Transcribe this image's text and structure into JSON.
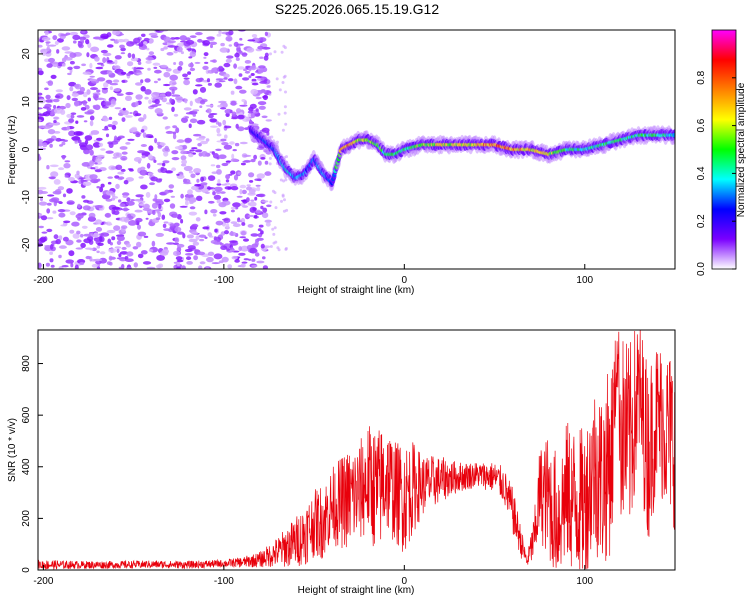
{
  "chart_data": [
    {
      "type": "heatmap",
      "title": "S225.2026.065.15.19.G12",
      "xlabel": "Height of straight line (km)",
      "ylabel": "Frequency (Hz)",
      "xlim": [
        -203,
        150
      ],
      "ylim": [
        -25,
        25
      ],
      "xticks": [
        -200,
        -100,
        0,
        100
      ],
      "yticks": [
        20,
        10,
        0,
        -10,
        -20
      ],
      "grid": false,
      "colorbar": {
        "label": "Normalized spectral amplitude",
        "range": [
          0,
          1
        ],
        "ticks": [
          "0.0",
          "0.2",
          "0.4",
          "0.6",
          "0.8"
        ],
        "colors": [
          "#ffffff",
          "#7a00ff",
          "#0000ff",
          "#00ffff",
          "#00ff00",
          "#ffff00",
          "#ff8000",
          "#ff0000",
          "#ff00ff"
        ]
      },
      "ridge": {
        "x": [
          -85,
          -78,
          -72,
          -66,
          -60,
          -55,
          -50,
          -45,
          -40,
          -35,
          -30,
          -25,
          -20,
          -15,
          -10,
          -5,
          0,
          10,
          20,
          30,
          40,
          50,
          60,
          70,
          80,
          90,
          100,
          110,
          120,
          130,
          140,
          150
        ],
        "freq": [
          4,
          2,
          0,
          -4,
          -6,
          -5,
          -2,
          -5,
          -7,
          0,
          1,
          2,
          2,
          1,
          -1,
          -1,
          0,
          1,
          1,
          1,
          1,
          1,
          0,
          0,
          -1,
          0,
          0,
          1,
          2,
          3,
          3,
          3
        ],
        "amplitude": [
          0.2,
          0.25,
          0.3,
          0.4,
          0.35,
          0.3,
          0.3,
          0.35,
          0.25,
          0.7,
          0.75,
          0.6,
          0.55,
          0.5,
          0.45,
          0.5,
          0.45,
          0.55,
          0.6,
          0.6,
          0.65,
          0.8,
          0.75,
          0.65,
          0.6,
          0.45,
          0.4,
          0.45,
          0.45,
          0.45,
          0.45,
          0.4
        ]
      }
    },
    {
      "type": "line",
      "title": "",
      "xlabel": "Height of straight line (km)",
      "ylabel": "SNR (10 * v/v)",
      "xlim": [
        -203,
        150
      ],
      "ylim": [
        0,
        930
      ],
      "xticks": [
        -200,
        -100,
        0,
        100
      ],
      "yticks": [
        0,
        200,
        400,
        600,
        800
      ],
      "grid": false,
      "color": "#e8000b",
      "series": [
        {
          "x": [
            -203,
            -180,
            -160,
            -140,
            -120,
            -100,
            -90,
            -80,
            -70,
            -65,
            -60,
            -55,
            -50,
            -45,
            -40,
            -35,
            -30,
            -25,
            -20,
            -15,
            -10,
            -5,
            0,
            5,
            10,
            20,
            30,
            40,
            50,
            55,
            60,
            65,
            68,
            70,
            72,
            75,
            80,
            85,
            90,
            95,
            100,
            105,
            110,
            115,
            118,
            120,
            125,
            130,
            135,
            140,
            145,
            150
          ],
          "values": [
            20,
            20,
            20,
            22,
            20,
            25,
            30,
            40,
            70,
            90,
            110,
            140,
            180,
            190,
            250,
            260,
            280,
            300,
            350,
            300,
            360,
            300,
            280,
            320,
            330,
            350,
            360,
            370,
            360,
            330,
            230,
            100,
            30,
            80,
            120,
            300,
            280,
            200,
            300,
            260,
            250,
            400,
            350,
            450,
            850,
            550,
            500,
            700,
            450,
            600,
            550,
            500
          ],
          "amplitude": [
            20,
            15,
            15,
            15,
            15,
            15,
            20,
            30,
            60,
            80,
            100,
            120,
            130,
            150,
            150,
            180,
            200,
            200,
            220,
            250,
            220,
            200,
            220,
            180,
            120,
            90,
            60,
            50,
            60,
            70,
            90,
            60,
            20,
            60,
            100,
            180,
            250,
            250,
            280,
            300,
            300,
            330,
            350,
            380,
            100,
            380,
            380,
            300,
            350,
            300,
            320,
            350
          ]
        }
      ]
    }
  ]
}
